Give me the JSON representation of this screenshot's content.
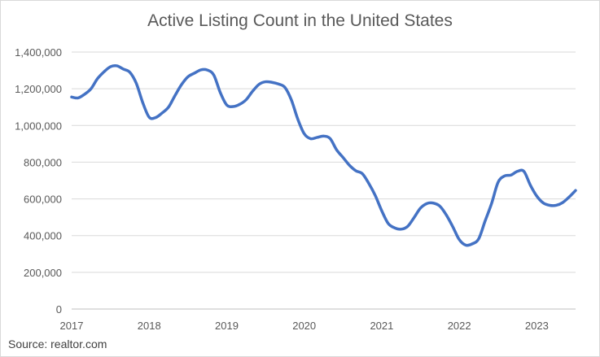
{
  "chart_data": {
    "type": "line",
    "title": "Active Listing Count in the United States",
    "source": "Source: realtor.com",
    "xlabel": "",
    "ylabel": "",
    "ylim": [
      0,
      1400000
    ],
    "ytick_values": [
      0,
      200000,
      400000,
      600000,
      800000,
      1000000,
      1200000,
      1400000
    ],
    "ytick_labels": [
      "0",
      "200,000",
      "400,000",
      "600,000",
      "800,000",
      "1,000,000",
      "1,200,000",
      "1,400,000"
    ],
    "xtick_labels": [
      "2017",
      "2018",
      "2019",
      "2020",
      "2021",
      "2022",
      "2023"
    ],
    "x_start": "2017-01",
    "x_end": "2023-07",
    "grid": "horizontal",
    "line_color": "#4472c4",
    "series": [
      {
        "x": [
          "2017-01",
          "2017-02",
          "2017-03",
          "2017-04",
          "2017-05",
          "2017-06",
          "2017-07",
          "2017-08",
          "2017-09",
          "2017-10",
          "2017-11",
          "2017-12",
          "2018-01",
          "2018-02",
          "2018-03",
          "2018-04",
          "2018-05",
          "2018-06",
          "2018-07",
          "2018-08",
          "2018-09",
          "2018-10",
          "2018-11",
          "2018-12",
          "2019-01",
          "2019-02",
          "2019-03",
          "2019-04",
          "2019-05",
          "2019-06",
          "2019-07",
          "2019-08",
          "2019-09",
          "2019-10",
          "2019-11",
          "2019-12",
          "2020-01",
          "2020-02",
          "2020-03",
          "2020-04",
          "2020-05",
          "2020-06",
          "2020-07",
          "2020-08",
          "2020-09",
          "2020-10",
          "2020-11",
          "2020-12",
          "2021-01",
          "2021-02",
          "2021-03",
          "2021-04",
          "2021-05",
          "2021-06",
          "2021-07",
          "2021-08",
          "2021-09",
          "2021-10",
          "2021-11",
          "2021-12",
          "2022-01",
          "2022-02",
          "2022-03",
          "2022-04",
          "2022-05",
          "2022-06",
          "2022-07",
          "2022-08",
          "2022-09",
          "2022-10",
          "2022-11",
          "2022-12",
          "2023-01",
          "2023-02",
          "2023-03",
          "2023-04",
          "2023-05",
          "2023-06",
          "2023-07"
        ],
        "values": [
          1155000,
          1150000,
          1170000,
          1200000,
          1255000,
          1292000,
          1320000,
          1325000,
          1307000,
          1290000,
          1230000,
          1125000,
          1045000,
          1043000,
          1068000,
          1100000,
          1163000,
          1222000,
          1265000,
          1285000,
          1303000,
          1302000,
          1275000,
          1180000,
          1112000,
          1103000,
          1115000,
          1140000,
          1186000,
          1224000,
          1238000,
          1235000,
          1226000,
          1208000,
          1140000,
          1035000,
          955000,
          928000,
          935000,
          942000,
          929000,
          868000,
          826000,
          783000,
          753000,
          737000,
          684000,
          618000,
          535000,
          466000,
          442000,
          435000,
          450000,
          498000,
          550000,
          575000,
          577000,
          560000,
          512000,
          448000,
          378000,
          348000,
          355000,
          382000,
          480000,
          575000,
          690000,
          725000,
          730000,
          750000,
          750000,
          675000,
          615000,
          578000,
          565000,
          565000,
          580000,
          610000,
          646000
        ]
      }
    ]
  }
}
